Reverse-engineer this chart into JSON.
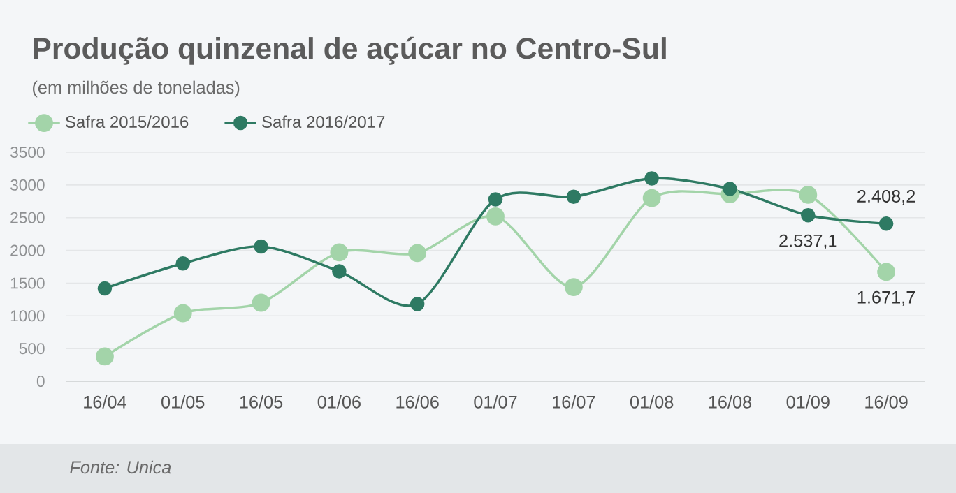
{
  "chart_data": {
    "type": "line",
    "title": "Produção quinzenal de açúcar no Centro-Sul",
    "subtitle": "(em milhões de toneladas)",
    "categories": [
      "16/04",
      "01/05",
      "16/05",
      "01/06",
      "16/06",
      "01/07",
      "16/07",
      "01/08",
      "16/08",
      "01/09",
      "16/09"
    ],
    "series": [
      {
        "name": "Safra 2015/2016",
        "color": "#a3d4a9",
        "values": [
          380,
          1040,
          1200,
          1970,
          1960,
          2520,
          1440,
          2800,
          2860,
          2850,
          1671.7
        ],
        "value_labels": [
          null,
          null,
          null,
          null,
          null,
          null,
          null,
          null,
          null,
          null,
          "1.671,7"
        ]
      },
      {
        "name": "Safra 2016/2017",
        "color": "#2e7a63",
        "values": [
          1420,
          1800,
          2060,
          1680,
          1180,
          2780,
          2820,
          3100,
          2940,
          2537.1,
          2408.2
        ],
        "value_labels": [
          null,
          null,
          null,
          null,
          null,
          null,
          null,
          null,
          null,
          "2.537,1",
          "2.408,2"
        ]
      }
    ],
    "ylim": [
      0,
      3500
    ],
    "yticks": [
      0,
      500,
      1000,
      1500,
      2000,
      2500,
      3000,
      3500
    ],
    "grid": "y",
    "legend": "top left",
    "marker": "circle",
    "line_style": "solid",
    "annotations": [
      "Fonte: Unica"
    ]
  }
}
